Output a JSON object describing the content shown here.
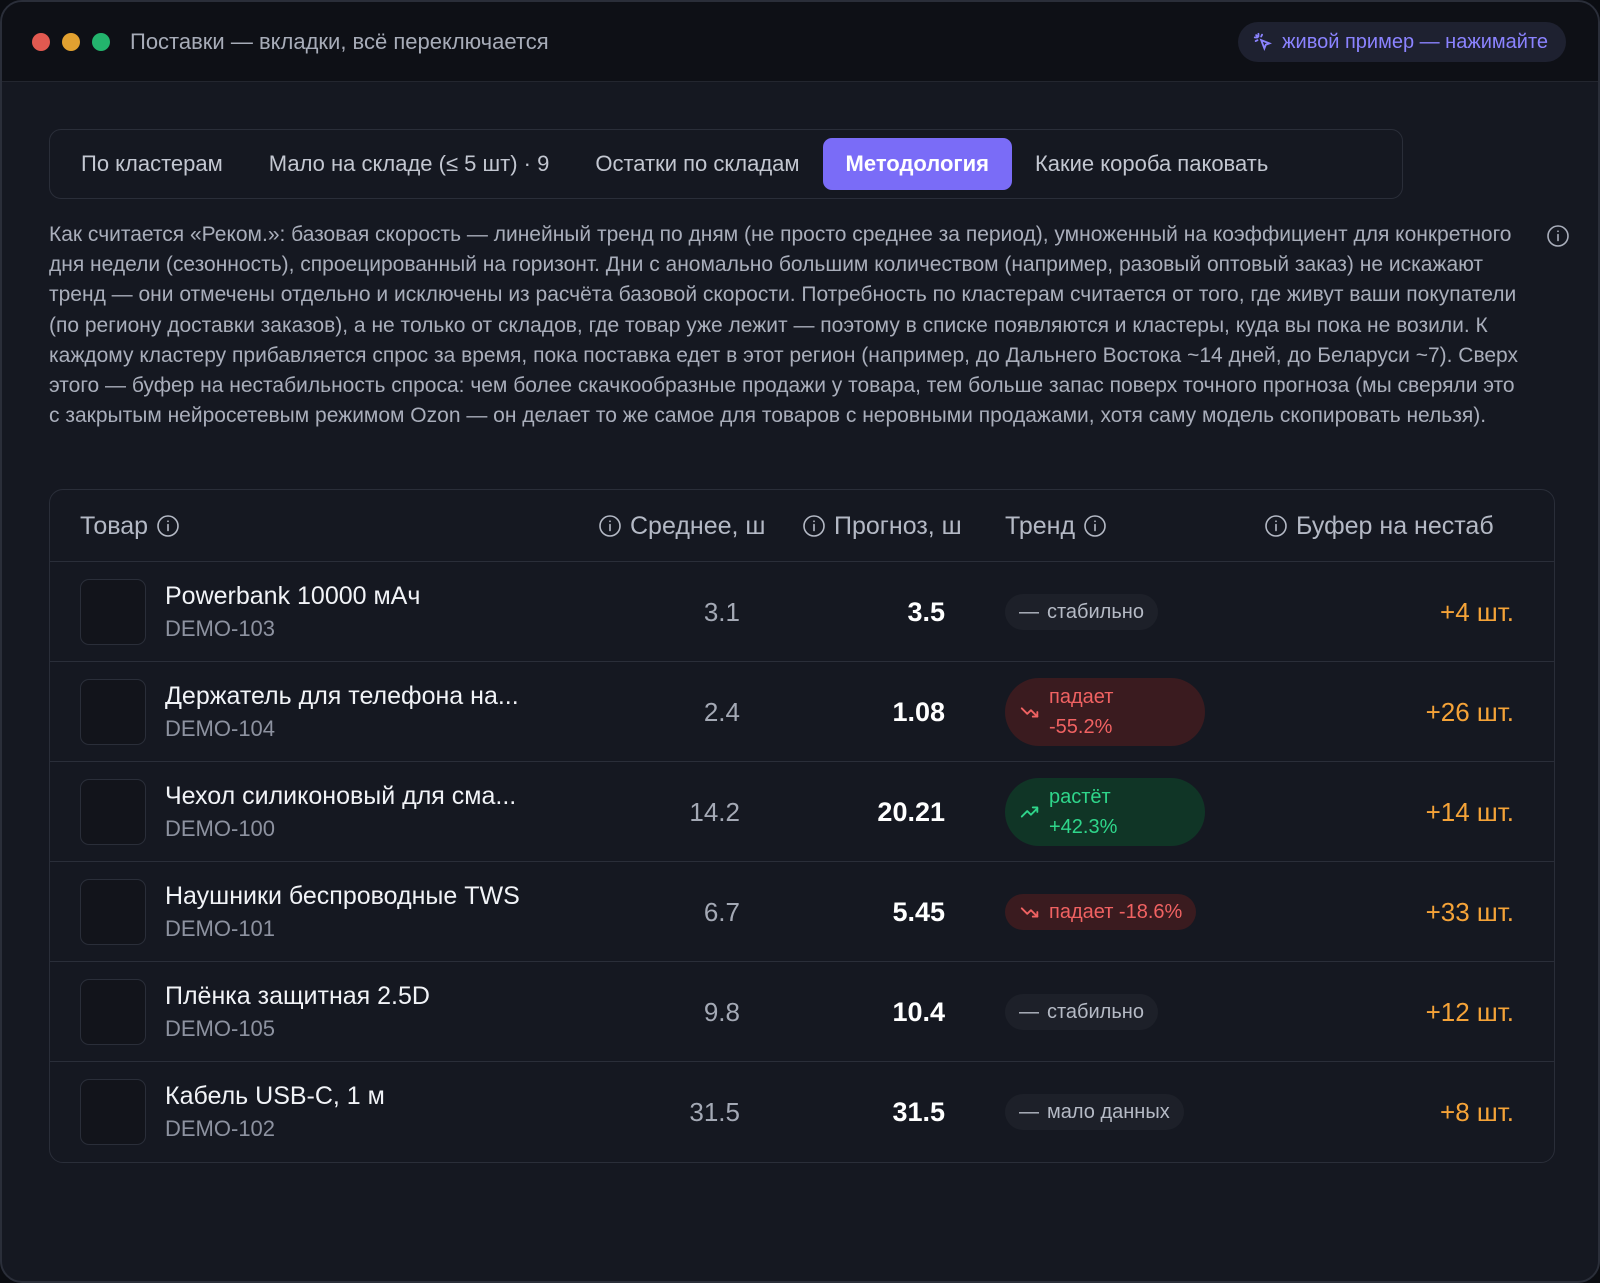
{
  "window": {
    "title": "Поставки — вкладки, всё переключается",
    "live_badge": "живой пример — нажимайте"
  },
  "tabs": [
    {
      "label": "По кластерам",
      "active": false
    },
    {
      "label": "Мало на складе (≤ 5 шт) · 9",
      "active": false
    },
    {
      "label": "Остатки по складам",
      "active": false
    },
    {
      "label": "Методология",
      "active": true
    },
    {
      "label": "Какие короба паковать",
      "active": false
    }
  ],
  "description": "Как считается «Реком.»: базовая скорость — линейный тренд по дням (не просто среднее за период), умноженный на коэффициент для конкретного дня недели (сезонность), спроецированный на горизонт. Дни с аномально большим количеством (например, разовый оптовый заказ) не искажают тренд — они отмечены отдельно и исключены из расчёта базовой скорости. Потребность по кластерам считается от того, где живут ваши покупатели (по региону доставки заказов), а не только от складов, где товар уже лежит — поэтому в списке появляются и кластеры, куда вы пока не возили. К каждому кластеру прибавляется спрос за время, пока поставка едет в этот регион (например, до Дальнего Востока ~14 дней, до Беларуси ~7). Сверх этого — буфер на нестабильность спроса: чем более скачкообразные продажи у товара, тем больше запас поверх точного прогноза (мы сверяли это с закрытым нейросетевым режимом Ozon — он делает то же самое для товаров с неровными продажами, хотя саму модель скопировать нельзя).",
  "table": {
    "headers": {
      "product": "Товар",
      "average": "Среднее, ш",
      "forecast": "Прогноз, ш",
      "trend": "Тренд",
      "buffer": "Буфер на нестаб"
    },
    "rows": [
      {
        "name": "Powerbank 10000 мАч",
        "sku": "DEMO-103",
        "average": "3.1",
        "forecast": "3.5",
        "trend_kind": "neutral",
        "trend_label": "стабильно",
        "trend_value": "",
        "buffer": "+4 шт."
      },
      {
        "name": "Держатель для телефона на...",
        "sku": "DEMO-104",
        "average": "2.4",
        "forecast": "1.08",
        "trend_kind": "down",
        "trend_label": "падает",
        "trend_value": "-55.2%",
        "buffer": "+26 шт."
      },
      {
        "name": "Чехол силиконовый для сма...",
        "sku": "DEMO-100",
        "average": "14.2",
        "forecast": "20.21",
        "trend_kind": "up",
        "trend_label": "растёт",
        "trend_value": "+42.3%",
        "buffer": "+14 шт."
      },
      {
        "name": "Наушники беспроводные TWS",
        "sku": "DEMO-101",
        "average": "6.7",
        "forecast": "5.45",
        "trend_kind": "down",
        "trend_label": "падает -18.6%",
        "trend_value": "",
        "buffer": "+33 шт."
      },
      {
        "name": "Плёнка защитная 2.5D",
        "sku": "DEMO-105",
        "average": "9.8",
        "forecast": "10.4",
        "trend_kind": "neutral",
        "trend_label": "стабильно",
        "trend_value": "",
        "buffer": "+12 шт."
      },
      {
        "name": "Кабель USB-C, 1 м",
        "sku": "DEMO-102",
        "average": "31.5",
        "forecast": "31.5",
        "trend_kind": "neutral",
        "trend_label": "мало данных",
        "trend_value": "",
        "buffer": "+8 шт."
      }
    ]
  },
  "colors": {
    "accent": "#7a6cf7",
    "down": "#f06262",
    "up": "#2fd68b",
    "buffer": "#f5a338"
  },
  "icons": {
    "info": "info-icon",
    "trend_down": "trend-down-icon",
    "trend_up": "trend-up-icon",
    "neutral": "dash-icon",
    "live": "sparkle-cursor-icon"
  }
}
